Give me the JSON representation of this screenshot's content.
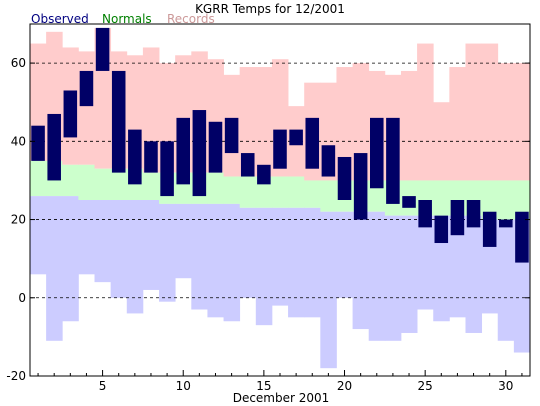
{
  "chart_data": {
    "type": "bar",
    "title": "KGRR Temps for 12/2001",
    "xlabel": "December 2001",
    "ylabel": "",
    "xlim": [
      0.5,
      31.5
    ],
    "ylim": [
      -20,
      70
    ],
    "yticks": [
      -20,
      0,
      20,
      40,
      60
    ],
    "xticks": [
      5,
      10,
      15,
      20,
      25,
      30
    ],
    "grid": "dashed horizontal at y ticks",
    "legend": "top-left",
    "colors": {
      "observed": "#000066",
      "normals": "#ccffcc",
      "records": "#ffcccc",
      "record_low": "#ccccff",
      "observed_legend": "#000080",
      "normals_legend": "#008000",
      "records_legend": "#cc9999"
    },
    "series": [
      {
        "name": "Observed",
        "days": [
          1,
          2,
          3,
          4,
          5,
          6,
          7,
          8,
          9,
          10,
          11,
          12,
          13,
          14,
          15,
          16,
          17,
          18,
          19,
          20,
          21,
          22,
          23,
          24,
          25,
          26,
          27,
          28,
          29,
          30,
          31
        ],
        "high": [
          44,
          47,
          53,
          58,
          69,
          58,
          43,
          40,
          40,
          46,
          48,
          45,
          46,
          37,
          34,
          43,
          43,
          46,
          39,
          36,
          37,
          46,
          46,
          26,
          25,
          21,
          25,
          25,
          22,
          20,
          22
        ],
        "low": [
          35,
          30,
          41,
          49,
          58,
          32,
          29,
          32,
          26,
          29,
          26,
          32,
          37,
          31,
          29,
          33,
          39,
          33,
          31,
          25,
          20,
          28,
          24,
          23,
          18,
          14,
          16,
          18,
          13,
          18,
          9
        ]
      },
      {
        "name": "Normals",
        "high": [
          35,
          35,
          34,
          34,
          33,
          33,
          33,
          32,
          32,
          32,
          32,
          32,
          31,
          31,
          31,
          31,
          31,
          30,
          30,
          30,
          30,
          30,
          30,
          30,
          30,
          30,
          30,
          30,
          30,
          30,
          30
        ],
        "low": [
          26,
          26,
          26,
          25,
          25,
          25,
          25,
          25,
          24,
          24,
          24,
          24,
          24,
          23,
          23,
          23,
          23,
          23,
          22,
          22,
          22,
          22,
          21,
          21,
          21,
          21,
          21,
          21,
          20,
          20,
          20
        ]
      },
      {
        "name": "Records",
        "high": [
          65,
          68,
          64,
          63,
          69,
          63,
          62,
          64,
          60,
          62,
          63,
          61,
          57,
          59,
          59,
          61,
          49,
          55,
          55,
          59,
          60,
          58,
          57,
          58,
          65,
          50,
          59,
          65,
          65,
          60,
          60
        ],
        "low": [
          6,
          -11,
          -6,
          6,
          4,
          0,
          -4,
          2,
          -1,
          5,
          -3,
          -5,
          -6,
          0,
          -7,
          -2,
          -5,
          -5,
          -18,
          0,
          -8,
          -11,
          -11,
          -9,
          -3,
          -6,
          -5,
          -9,
          -4,
          -11,
          -14
        ]
      }
    ]
  }
}
